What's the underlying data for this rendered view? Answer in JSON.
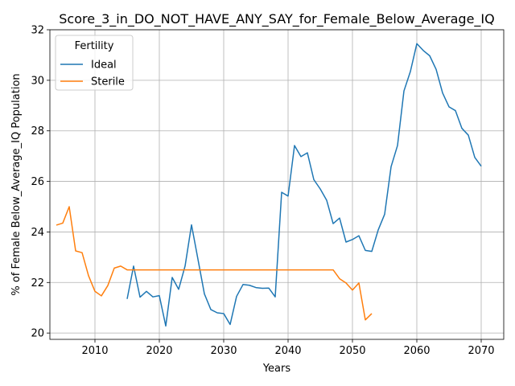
{
  "chart_data": {
    "type": "line",
    "title": "Score_3_in_DO_NOT_HAVE_ANY_SAY_for_Female_Below_Average_IQ",
    "xlabel": "Years",
    "ylabel": "% of Female Below_Average_IQ Population",
    "xlim": [
      2003,
      2073.5
    ],
    "ylim": [
      19.75,
      32
    ],
    "xticks": [
      2010,
      2020,
      2030,
      2040,
      2050,
      2060,
      2070
    ],
    "yticks": [
      20,
      22,
      24,
      26,
      28,
      30,
      32
    ],
    "grid": true,
    "legend": {
      "title": "Fertility",
      "placement": "top-left"
    },
    "series": [
      {
        "name": "Ideal",
        "color": "#1f77b4",
        "x": [
          2015,
          2016,
          2017,
          2018,
          2019,
          2020,
          2021,
          2022,
          2023,
          2024,
          2025,
          2026,
          2027,
          2028,
          2029,
          2030,
          2031,
          2032,
          2033,
          2034,
          2035,
          2036,
          2037,
          2038,
          2039,
          2040,
          2041,
          2042,
          2043,
          2044,
          2045,
          2046,
          2047,
          2048,
          2049,
          2050,
          2051,
          2052,
          2053,
          2054,
          2055,
          2056,
          2057,
          2058,
          2059,
          2060,
          2061,
          2062,
          2063,
          2064,
          2065,
          2066,
          2067,
          2068,
          2069,
          2070
        ],
        "y": [
          21.35,
          22.65,
          21.42,
          21.65,
          21.43,
          21.48,
          20.28,
          22.2,
          21.73,
          22.65,
          24.28,
          22.92,
          21.55,
          20.93,
          20.8,
          20.77,
          20.34,
          21.45,
          21.92,
          21.89,
          21.8,
          21.77,
          21.78,
          21.43,
          25.57,
          25.42,
          27.42,
          26.98,
          27.13,
          26.07,
          25.7,
          25.25,
          24.33,
          24.55,
          23.6,
          23.7,
          23.85,
          23.27,
          23.23,
          24.08,
          24.7,
          26.58,
          27.42,
          29.58,
          30.35,
          31.45,
          31.18,
          30.97,
          30.43,
          29.5,
          28.95,
          28.8,
          28.1,
          27.83,
          26.95,
          26.6
        ]
      },
      {
        "name": "Sterile",
        "color": "#ff7f0e",
        "x": [
          2004,
          2005,
          2006,
          2007,
          2008,
          2009,
          2010,
          2011,
          2012,
          2013,
          2014,
          2015,
          2016,
          2017,
          2018,
          2019,
          2020,
          2021,
          2022,
          2023,
          2024,
          2025,
          2026,
          2027,
          2028,
          2029,
          2030,
          2031,
          2032,
          2033,
          2034,
          2035,
          2036,
          2037,
          2038,
          2039,
          2040,
          2041,
          2042,
          2043,
          2044,
          2045,
          2046,
          2047,
          2048,
          2049,
          2050,
          2051,
          2052,
          2053
        ],
        "y": [
          24.27,
          24.35,
          25.0,
          23.25,
          23.18,
          22.27,
          21.65,
          21.47,
          21.88,
          22.57,
          22.65,
          22.5,
          22.5,
          22.5,
          22.5,
          22.5,
          22.5,
          22.5,
          22.5,
          22.5,
          22.5,
          22.5,
          22.5,
          22.5,
          22.5,
          22.5,
          22.5,
          22.5,
          22.5,
          22.5,
          22.5,
          22.5,
          22.5,
          22.5,
          22.5,
          22.5,
          22.5,
          22.5,
          22.5,
          22.5,
          22.5,
          22.5,
          22.5,
          22.5,
          22.15,
          21.98,
          21.7,
          21.98,
          20.52,
          20.77
        ]
      }
    ]
  }
}
